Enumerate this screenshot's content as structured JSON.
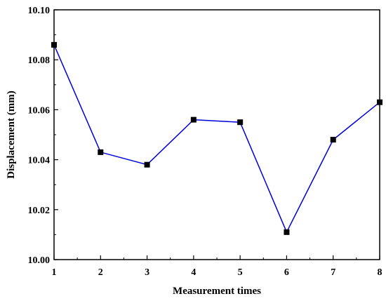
{
  "chart_data": {
    "type": "line",
    "title": "",
    "xlabel": "Measurement times",
    "ylabel": "Displacement (mm)",
    "x": [
      1,
      2,
      3,
      4,
      5,
      6,
      7,
      8
    ],
    "series": [
      {
        "values": [
          10.086,
          10.043,
          10.038,
          10.056,
          10.055,
          10.011,
          10.048,
          10.063
        ]
      }
    ],
    "xlim": [
      1,
      8
    ],
    "ylim": [
      10.0,
      10.1
    ],
    "xticks": [
      "1",
      "2",
      "3",
      "4",
      "5",
      "6",
      "7",
      "8"
    ],
    "yticks": [
      "10.00",
      "10.02",
      "10.04",
      "10.06",
      "10.08",
      "10.10"
    ],
    "grid": false,
    "line_color": "#0000dd",
    "marker_color": "#000000",
    "marker": "square"
  }
}
